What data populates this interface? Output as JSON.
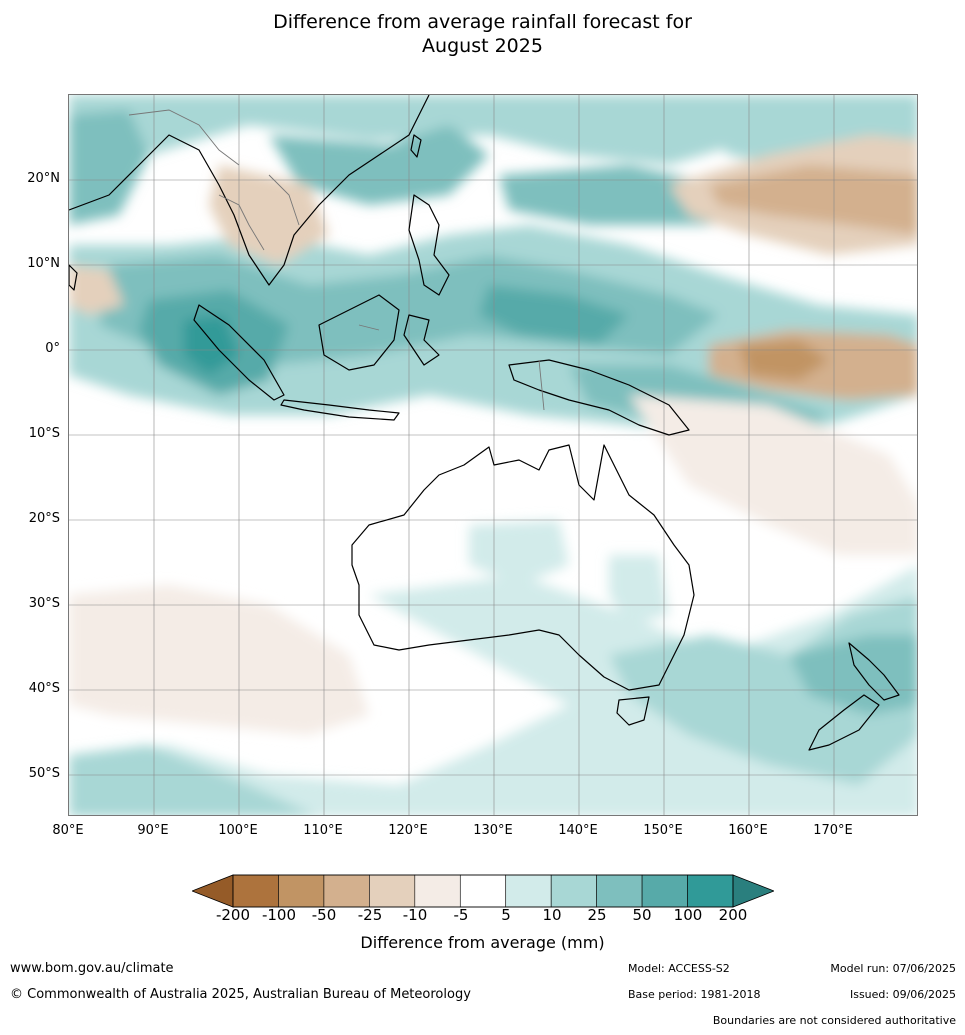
{
  "title": {
    "line1": "Difference from average rainfall forecast for",
    "line2": "August 2025"
  },
  "map": {
    "lat_labels": [
      "20°N",
      "10°N",
      "0°",
      "10°S",
      "20°S",
      "30°S",
      "40°S",
      "50°S"
    ],
    "lon_labels": [
      "80°E",
      "90°E",
      "100°E",
      "110°E",
      "120°E",
      "130°E",
      "140°E",
      "150°E",
      "160°E",
      "170°E"
    ],
    "extent": {
      "lon_min": 80,
      "lon_max": 180,
      "lat_min": -55,
      "lat_max": 30
    }
  },
  "legend": {
    "title": "Difference from average (mm)",
    "tick_labels": [
      "-200",
      "-100",
      "-50",
      "-25",
      "-10",
      "-5",
      "5",
      "10",
      "25",
      "50",
      "100",
      "200"
    ],
    "colors": {
      "below_min": "#955b28",
      "levels": [
        "#ad733d",
        "#c19464",
        "#d3b08e",
        "#e4d0bc",
        "#f4ece6",
        "#ffffff",
        "#d2ebea",
        "#a8d7d5",
        "#7ebfbe",
        "#57aaa9",
        "#309a98"
      ],
      "above_max": "#2a7f7e"
    }
  },
  "footer": {
    "website": "www.bom.gov.au/climate",
    "copyright": "© Commonwealth of Australia 2025, Australian Bureau of Meteorology",
    "model": "Model: ACCESS-S2",
    "base_period": "Base period: 1981-2018",
    "model_run": "Model run: 07/06/2025",
    "issued": "Issued: 09/06/2025",
    "disclaimer": "Boundaries are not considered authoritative"
  }
}
